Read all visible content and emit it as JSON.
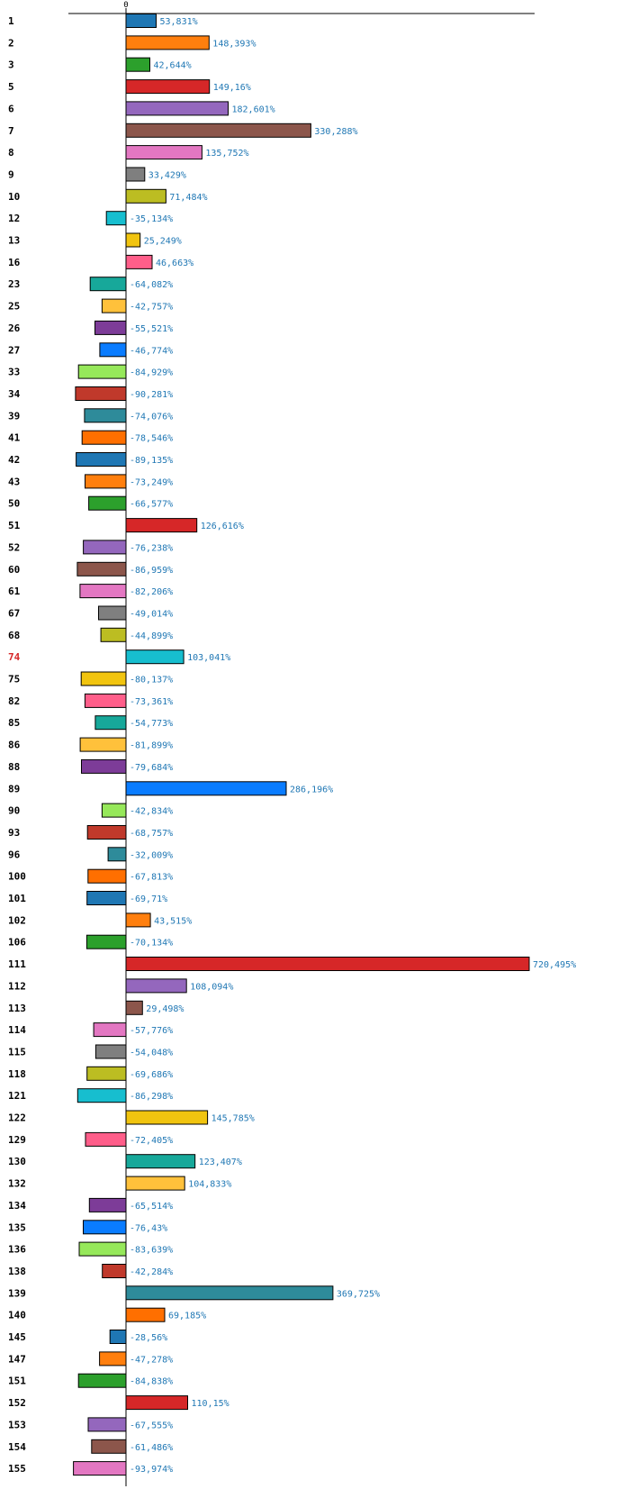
{
  "chart_data": {
    "type": "bar",
    "orientation": "horizontal",
    "title": "",
    "xlabel": "",
    "ylabel": "",
    "zero_tick_label": "0",
    "xlim": [
      -100,
      720.495
    ],
    "highlight_category": "74",
    "colors": {
      "value_label": "#1f77b4",
      "category_label": "#000000",
      "highlight_label": "#d62728",
      "axis": "#000000",
      "palette": [
        "#1f77b4",
        "#ff7f0e",
        "#2ca02c",
        "#d62728",
        "#9467bd",
        "#8c564b",
        "#e377c2",
        "#7f7f7f",
        "#bcbd22",
        "#17becf",
        "#f1c40f",
        "#ff5e8a",
        "#17a89a",
        "#ffc13b",
        "#7d3c98",
        "#0a7cff",
        "#96e85a",
        "#c0392b",
        "#2e8b9a",
        "#ff6f00"
      ]
    },
    "categories": [
      "1",
      "2",
      "3",
      "5",
      "6",
      "7",
      "8",
      "9",
      "10",
      "12",
      "13",
      "16",
      "23",
      "25",
      "26",
      "27",
      "33",
      "34",
      "39",
      "41",
      "42",
      "43",
      "50",
      "51",
      "52",
      "60",
      "61",
      "67",
      "68",
      "74",
      "75",
      "82",
      "85",
      "86",
      "88",
      "89",
      "90",
      "93",
      "96",
      "100",
      "101",
      "102",
      "106",
      "111",
      "112",
      "113",
      "114",
      "115",
      "118",
      "121",
      "122",
      "129",
      "130",
      "132",
      "134",
      "135",
      "136",
      "138",
      "139",
      "140",
      "145",
      "147",
      "151",
      "152",
      "153",
      "154",
      "155"
    ],
    "values": [
      53.831,
      148.393,
      42.644,
      149.16,
      182.601,
      330.288,
      135.752,
      33.429,
      71.484,
      -35.134,
      25.249,
      46.663,
      -64.082,
      -42.757,
      -55.521,
      -46.774,
      -84.929,
      -90.281,
      -74.076,
      -78.546,
      -89.135,
      -73.249,
      -66.577,
      126.616,
      -76.238,
      -86.959,
      -82.206,
      -49.014,
      -44.899,
      103.041,
      -80.137,
      -73.361,
      -54.773,
      -81.899,
      -79.684,
      286.196,
      -42.834,
      -68.757,
      -32.009,
      -67.813,
      -69.71,
      43.515,
      -70.134,
      720.495,
      108.094,
      29.498,
      -57.776,
      -54.048,
      -69.686,
      -86.298,
      145.785,
      -72.405,
      123.407,
      104.833,
      -65.514,
      -76.43,
      -83.639,
      -42.284,
      369.725,
      69.185,
      -28.56,
      -47.278,
      -84.838,
      110.15,
      -67.555,
      -61.486,
      -93.974
    ],
    "value_labels": [
      "53,831%",
      "148,393%",
      "42,644%",
      "149,16%",
      "182,601%",
      "330,288%",
      "135,752%",
      "33,429%",
      "71,484%",
      "-35,134%",
      "25,249%",
      "46,663%",
      "-64,082%",
      "-42,757%",
      "-55,521%",
      "-46,774%",
      "-84,929%",
      "-90,281%",
      "-74,076%",
      "-78,546%",
      "-89,135%",
      "-73,249%",
      "-66,577%",
      "126,616%",
      "-76,238%",
      "-86,959%",
      "-82,206%",
      "-49,014%",
      "-44,899%",
      "103,041%",
      "-80,137%",
      "-73,361%",
      "-54,773%",
      "-81,899%",
      "-79,684%",
      "286,196%",
      "-42,834%",
      "-68,757%",
      "-32,009%",
      "-67,813%",
      "-69,71%",
      "43,515%",
      "-70,134%",
      "720,495%",
      "108,094%",
      "29,498%",
      "-57,776%",
      "-54,048%",
      "-69,686%",
      "-86,298%",
      "145,785%",
      "-72,405%",
      "123,407%",
      "104,833%",
      "-65,514%",
      "-76,43%",
      "-83,639%",
      "-42,284%",
      "369,725%",
      "69,185%",
      "-28,56%",
      "-47,278%",
      "-84,838%",
      "110,15%",
      "-67,555%",
      "-61,486%",
      "-93,974%"
    ]
  }
}
